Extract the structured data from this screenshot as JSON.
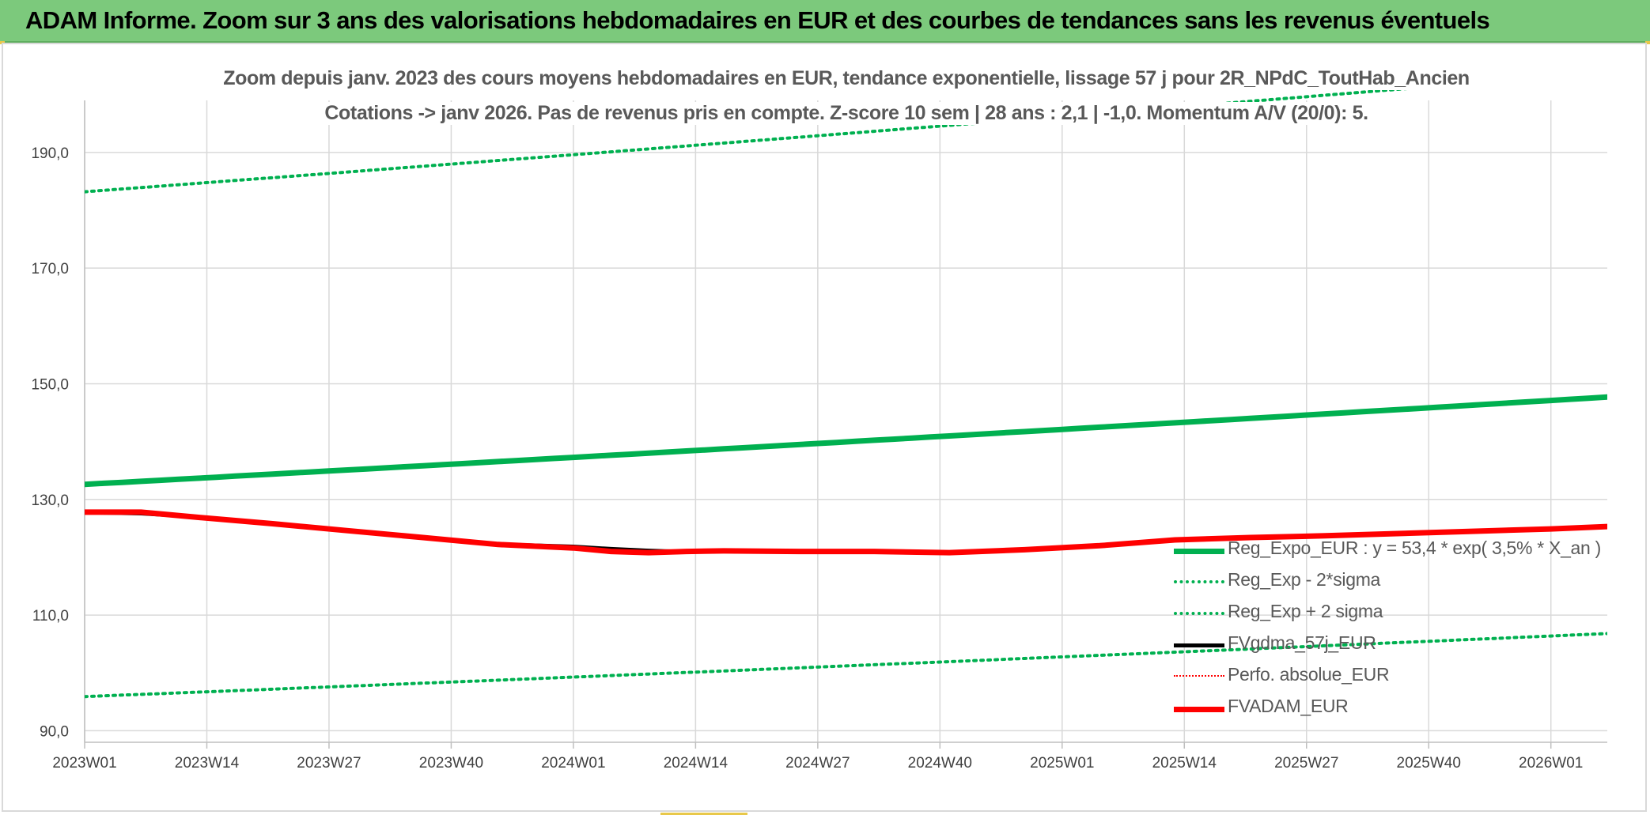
{
  "header": {
    "title": "ADAM Informe. Zoom sur 3 ans des valorisations hebdomadaires en EUR et des courbes de tendances sans les revenus éventuels"
  },
  "chart_data": {
    "type": "line",
    "title_line_1": "Zoom depuis janv. 2023 des cours moyens hebdomadaires en EUR, tendance exponentielle, lissage 57 j pour 2R_NPdC_ToutHab_Ancien",
    "title_line_2": "Cotations -> janv 2026. Pas de revenus pris en compte. Z-score 10 sem | 28 ans : 2,1 | -1,0. Momentum A/V (20/0): 5.",
    "x_tick_labels": [
      "2023W01",
      "2023W14",
      "2023W27",
      "2023W40",
      "2024W01",
      "2024W14",
      "2024W27",
      "2024W40",
      "2025W01",
      "2025W14",
      "2025W27",
      "2025W40",
      "2026W01"
    ],
    "x_range_weeks": [
      0,
      162
    ],
    "y_tick_labels": [
      "90,0",
      "110,0",
      "130,0",
      "150,0",
      "170,0",
      "190,0"
    ],
    "y_ticks": [
      90,
      110,
      130,
      150,
      170,
      190
    ],
    "ylim": [
      88,
      199
    ],
    "grid": true,
    "legend_position": "bottom-right",
    "colors": {
      "reg_expo": "#00b050",
      "band": "#00b050",
      "fvgdma": "#000000",
      "perfo": "#ff0000",
      "fvadam": "#ff0000"
    },
    "series": [
      {
        "key": "reg_expo",
        "name": "Reg_Expo_EUR : y = 53,4 * exp( 3,5% * X_an )",
        "style": "solid-thick",
        "x": [
          0,
          162
        ],
        "y": [
          132.6,
          147.7
        ]
      },
      {
        "key": "band_minus",
        "name": "Reg_Exp - 2*sigma",
        "style": "dotted",
        "x": [
          0,
          162
        ],
        "y": [
          95.9,
          106.8
        ]
      },
      {
        "key": "band_plus",
        "name": "Reg_Exp + 2 sigma",
        "style": "dotted",
        "x": [
          0,
          162
        ],
        "y": [
          183.2,
          203.9
        ]
      },
      {
        "key": "fvgdma",
        "name": "FVgdma_57j_EUR",
        "style": "solid",
        "x": [
          0,
          6,
          12,
          20,
          28,
          36,
          44,
          52,
          56,
          60,
          64,
          68,
          76,
          84,
          92,
          100,
          108,
          116,
          124,
          132,
          140,
          148,
          156,
          162
        ],
        "y": [
          127.7,
          127.5,
          126.9,
          125.7,
          124.6,
          123.4,
          122.3,
          121.9,
          121.5,
          121.2,
          121.0,
          121.0,
          121.0,
          120.9,
          120.9,
          121.3,
          122.0,
          123.0,
          123.4,
          123.7,
          124.1,
          124.5,
          124.9,
          125.3
        ]
      },
      {
        "key": "perfo",
        "name": "Perfo. absolue_EUR",
        "style": "dotted-thin",
        "x": [],
        "y": []
      },
      {
        "key": "fvadam",
        "name": "FVADAM_EUR",
        "style": "solid-thick",
        "x": [
          0,
          6,
          12,
          20,
          28,
          36,
          44,
          52,
          56,
          60,
          64,
          68,
          76,
          84,
          92,
          100,
          108,
          116,
          124,
          132,
          140,
          148,
          156,
          162
        ],
        "y": [
          127.8,
          127.8,
          126.9,
          125.8,
          124.6,
          123.4,
          122.2,
          121.6,
          121.0,
          120.8,
          121.0,
          121.1,
          121.0,
          121.0,
          120.8,
          121.3,
          122.0,
          123.0,
          123.4,
          123.7,
          124.1,
          124.5,
          124.9,
          125.3
        ]
      }
    ]
  }
}
